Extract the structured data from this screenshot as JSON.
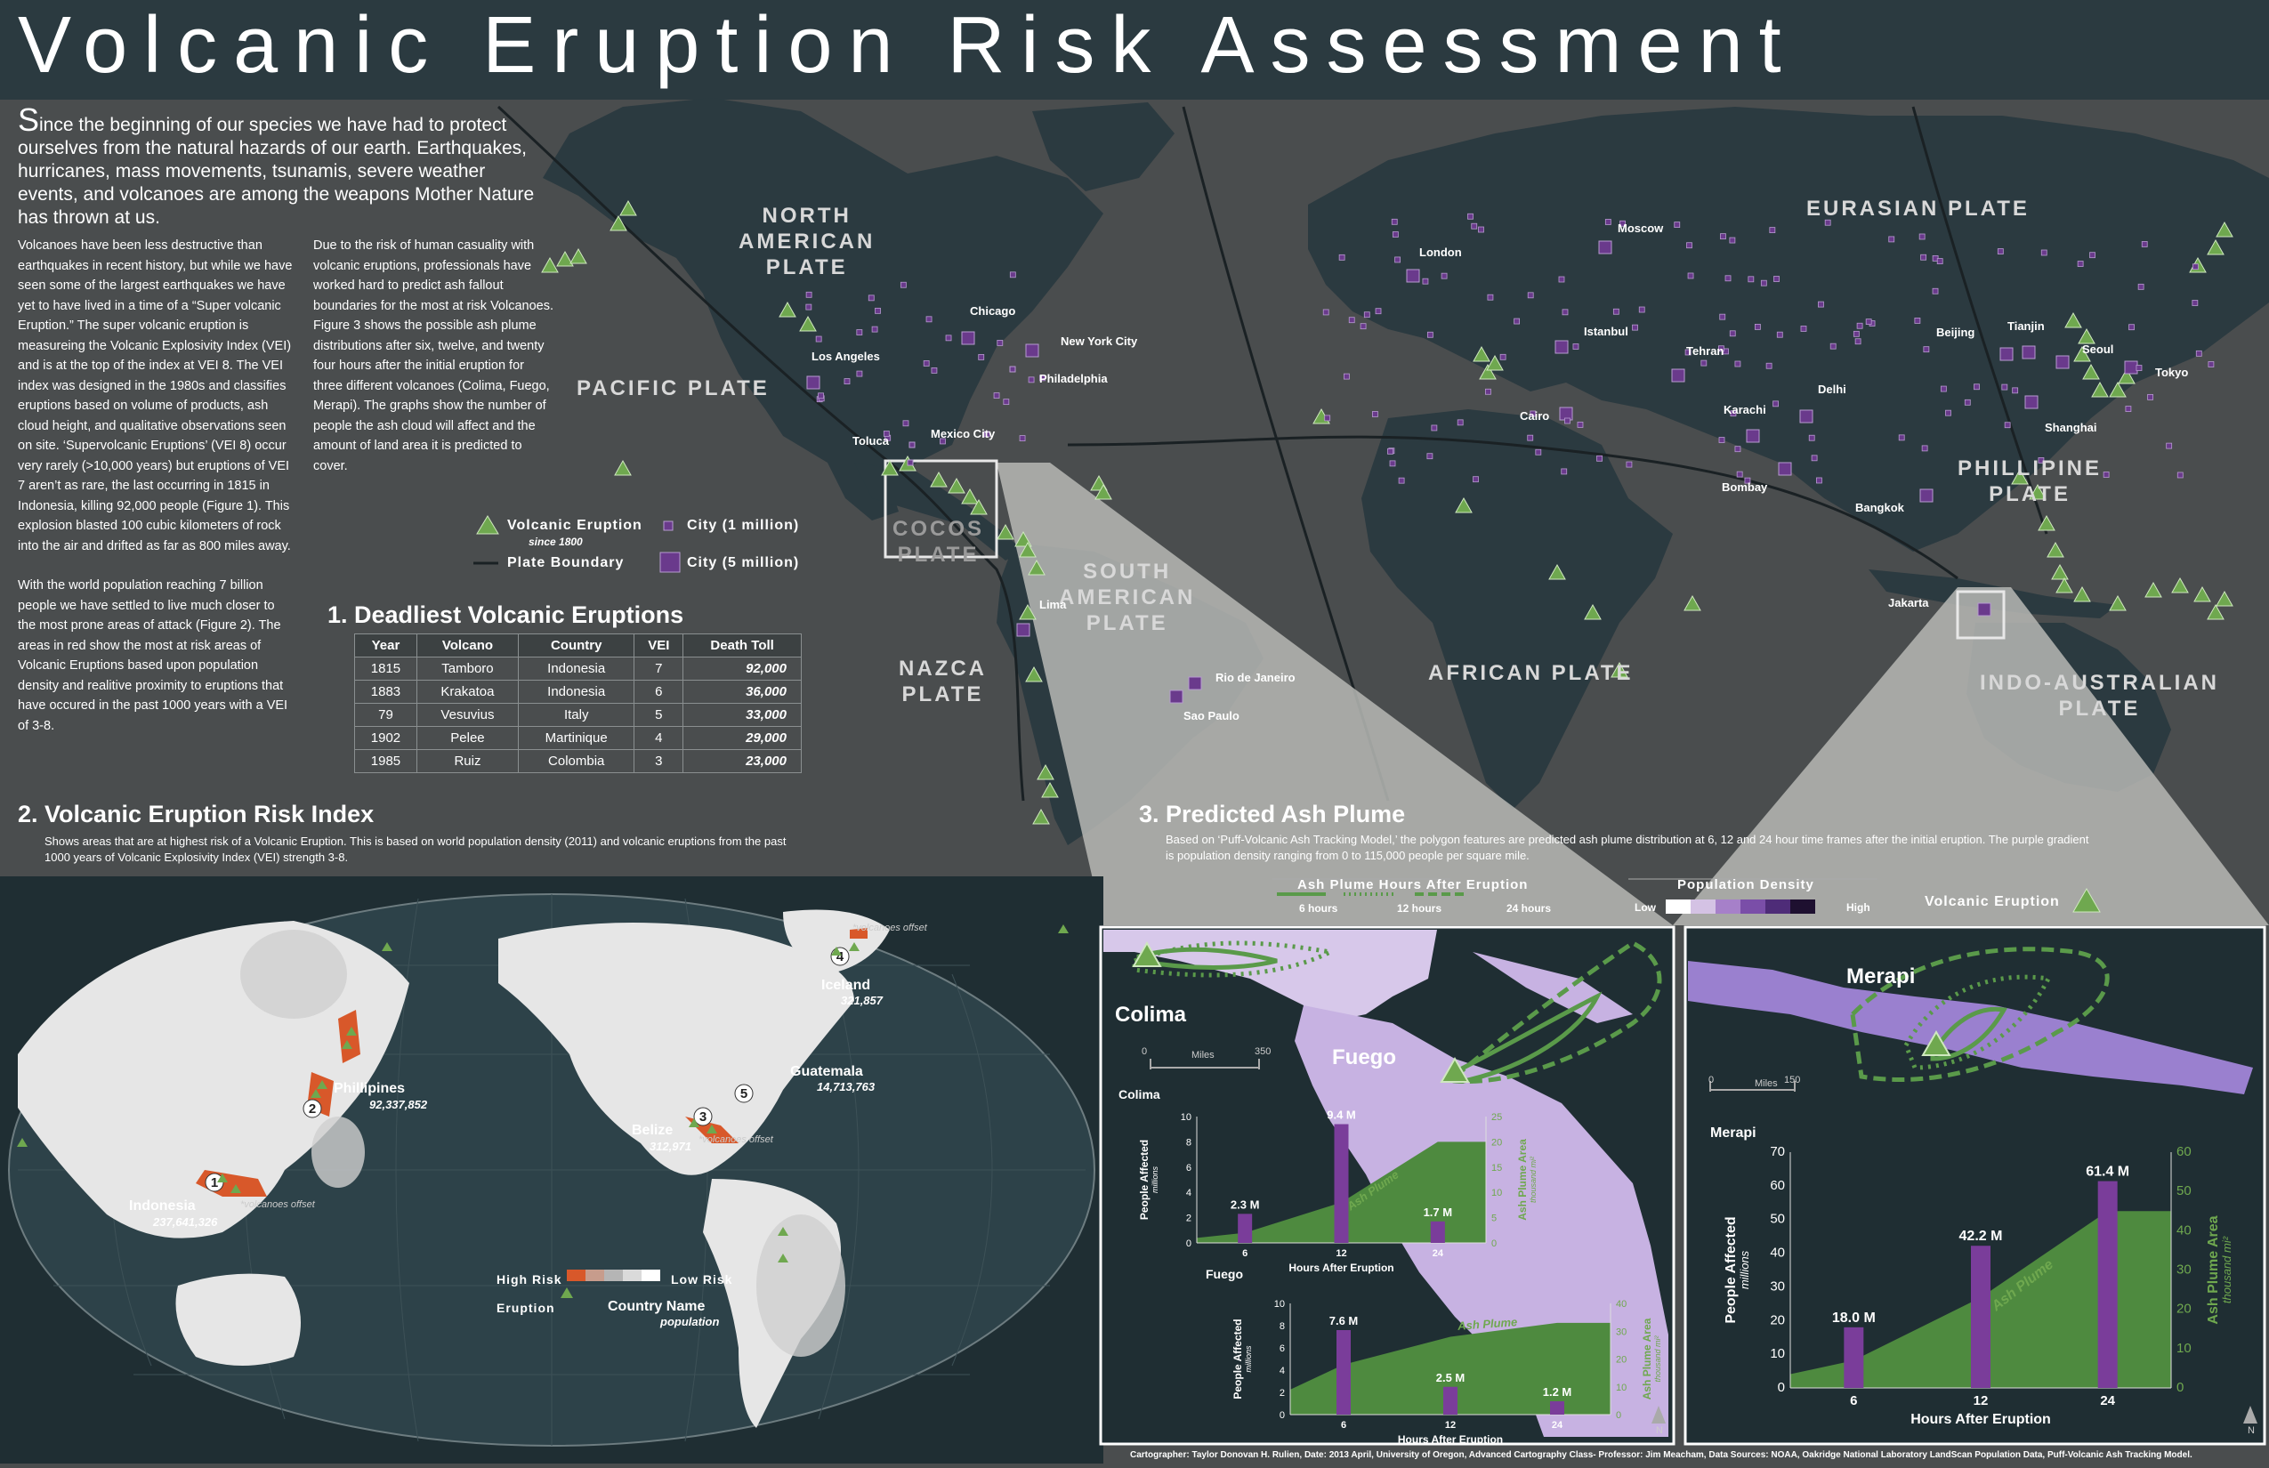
{
  "title": "Volcanic Eruption Risk Assessment",
  "intro": {
    "drop_letter": "S",
    "text": "ince the beginning of our species we have had to protect ourselves from the natural hazards of our earth. Earthquakes, hurricanes, mass movements, tsunamis, severe weather events, and volcanoes are among the weapons Mother Nature has thrown at us."
  },
  "column1": {
    "p1": "Volcanoes have been less destructive than earthquakes in recent history, but while we have seen some of the largest earthquakes we have yet to have lived in a time of a “Super volcanic Eruption.” The super volcanic eruption is measureing the Volcanic Explosivity Index (VEI) and is at the top of the index at VEI 8. The VEI index was designed in the 1980s and classifies eruptions based on volume of products, ash cloud height, and qualitative observations seen on site. ‘Supervolcanic Eruptions’ (VEI 8) occur very rarely (>10,000 years) but eruptions of VEI 7 aren’t as rare, the last occurring in 1815 in Indonesia, killing 92,000 people (Figure 1). This explosion blasted 100 cubic kilometers of rock into the air and drifted as far as 800 miles away.",
    "p2": "With the world population reaching 7 billion people we have settled to live much closer to the most prone areas of attack (Figure 2). The areas in red show the most at risk areas of Volcanic Eruptions based upon population density and realitive proximity to eruptions that have occured in the past 1000 years with a VEI of 3-8."
  },
  "column2": {
    "p1": "Due to the risk of human casuality with volcanic eruptions, professionals have worked hard to predict ash fallout boundaries for the most at risk Volcanoes. Figure 3 shows the possible ash plume distributions after six, twelve, and twenty four hours after the initial eruption for three different volcanoes (Colima, Fuego, Merapi). The graphs show the number of people the ash cloud will affect and the amount of land area it is predicted to cover."
  },
  "main_legend": {
    "volcanic_eruption": "Volcanic Eruption",
    "since": "since 1800",
    "plate_boundary": "Plate Boundary",
    "city_1m": "City (1 million)",
    "city_5m": "City (5 million)"
  },
  "colors": {
    "land": "#2b3a40",
    "ocean": "#4a4d4e",
    "volcano": "#6fa84f",
    "city": "#6a3a8c",
    "risk_high": "#d8582a",
    "plume_green": "#5a9a4a",
    "bar_purple": "#7a3d9a"
  },
  "plates": [
    {
      "line1": "NORTH",
      "line2": "AMERICAN",
      "line3": "PLATE"
    },
    {
      "line1": "PACIFIC PLATE"
    },
    {
      "line1": "COCOS",
      "line2": "PLATE"
    },
    {
      "line1": "NAZCA",
      "line2": "PLATE"
    },
    {
      "line1": "SOUTH",
      "line2": "AMERICAN",
      "line3": "PLATE"
    },
    {
      "line1": "AFRICAN PLATE"
    },
    {
      "line1": "EURASIAN PLATE"
    },
    {
      "line1": "PHILLIPINE",
      "line2": "PLATE"
    },
    {
      "line1": "INDO-AUSTRALIAN",
      "line2": "PLATE"
    }
  ],
  "cities": [
    "Chicago",
    "New York City",
    "Philadelphia",
    "Los Angeles",
    "Mexico City",
    "Toluca",
    "Lima",
    "Rio de Janeiro",
    "Sao Paulo",
    "London",
    "Moscow",
    "Istanbul",
    "Tehran",
    "Cairo",
    "Karachi",
    "Delhi",
    "Bombay",
    "Bangkok",
    "Jakarta",
    "Beijing",
    "Tianjin",
    "Seoul",
    "Tokyo",
    "Shanghai"
  ],
  "table": {
    "section_title": "1. Deadliest Volcanic Eruptions",
    "headers": [
      "Year",
      "Volcano",
      "Country",
      "VEI",
      "Death Toll"
    ],
    "rows": [
      [
        "1815",
        "Tamboro",
        "Indonesia",
        "7",
        "92,000"
      ],
      [
        "1883",
        "Krakatoa",
        "Indonesia",
        "6",
        "36,000"
      ],
      [
        "79",
        "Vesuvius",
        "Italy",
        "5",
        "33,000"
      ],
      [
        "1902",
        "Pelee",
        "Martinique",
        "4",
        "29,000"
      ],
      [
        "1985",
        "Ruiz",
        "Colombia",
        "3",
        "23,000"
      ]
    ]
  },
  "risk": {
    "section_title": "2. Volcanic Eruption Risk Index",
    "desc": "Shows areas that are at highest risk of a Volcanic Eruption. This is based on world population density (2011) and volcanic eruptions from the past  1000 years of Volcanic Explosivity Index (VEI) strength 3-8.",
    "places": [
      {
        "rank": "1",
        "name": "Indonesia",
        "pop": "237,641,326",
        "note": "*volcanoes offset"
      },
      {
        "rank": "2",
        "name": "Phillipines",
        "pop": "92,337,852"
      },
      {
        "rank": "3",
        "name": "Belize",
        "pop": "312,971",
        "note": "*volcanoes offset"
      },
      {
        "rank": "4",
        "name": "Iceland",
        "pop": "321,857",
        "note": "*volcanoes offset"
      },
      {
        "rank": "5",
        "name": "Guatemala",
        "pop": "14,713,763"
      }
    ],
    "legend": {
      "high": "High Risk",
      "low": "Low Risk",
      "eruption": "Eruption",
      "country_name": "Country Name",
      "population": "population"
    }
  },
  "ash": {
    "section_title": "3. Predicted Ash Plume",
    "desc": "Based on ‘Puff-Volcanic Ash Tracking Model,’ the polygon features are predicted ash plume distribution at 6, 12 and 24 hour time frames after the initial eruption.  The purple gradient is population density ranging from 0 to 115,000 people per square mile.",
    "legend": {
      "plume_title": "Ash Plume Hours After Eruption",
      "h6": "6 hours",
      "h12": "12 hours",
      "h24": "24 hours",
      "density_title": "Population Density",
      "low": "Low",
      "high": "High",
      "volcanic_eruption": "Volcanic Eruption"
    },
    "map_labels": {
      "colima": "Colima",
      "fuego": "Fuego",
      "merapi": "Merapi",
      "miles": "Miles",
      "scale_a_0": "0",
      "scale_a_max": "350",
      "scale_b_0": "0",
      "scale_b_max": "150",
      "north": "N"
    }
  },
  "chart_data": [
    {
      "type": "bar",
      "title": "Colima",
      "categories": [
        "6",
        "12",
        "24"
      ],
      "series": [
        {
          "name": "People Affected",
          "values": [
            2.3,
            9.4,
            1.7
          ]
        }
      ],
      "data_labels": [
        "2.3 M",
        "9.4 M",
        "1.7 M"
      ],
      "area": {
        "name": "Ash Plume",
        "values": [
          2,
          8,
          20
        ]
      },
      "xlabel": "Hours After Eruption",
      "ylabel": "People Affected",
      "ylabel_unit": "millions",
      "y2label": "Ash Plume Area",
      "y2label_unit": "thousand mi²",
      "ylim": [
        0,
        10
      ],
      "y2lim": [
        0,
        25
      ],
      "yticks": [
        "0",
        "2",
        "4",
        "6",
        "8",
        "10"
      ],
      "y2ticks": [
        "0",
        "5",
        "10",
        "15",
        "20",
        "25"
      ]
    },
    {
      "type": "bar",
      "title": "Fuego",
      "categories": [
        "6",
        "12",
        "24"
      ],
      "series": [
        {
          "name": "People Affected",
          "values": [
            7.6,
            2.5,
            1.2
          ]
        }
      ],
      "data_labels": [
        "7.6 M",
        "2.5 M",
        "1.2 M"
      ],
      "area": {
        "name": "Ash Plume",
        "values": [
          18,
          28,
          33
        ]
      },
      "xlabel": "Hours After Eruption",
      "ylabel": "People Affected",
      "ylabel_unit": "millions",
      "y2label": "Ash Plume Area",
      "y2label_unit": "thousand mi²",
      "ylim": [
        0,
        10
      ],
      "y2lim": [
        0,
        40
      ],
      "yticks": [
        "0",
        "2",
        "4",
        "6",
        "8",
        "10"
      ],
      "y2ticks": [
        "0",
        "10",
        "20",
        "30",
        "40"
      ]
    },
    {
      "type": "bar",
      "title": "Merapi",
      "categories": [
        "6",
        "12",
        "24"
      ],
      "series": [
        {
          "name": "People Affected",
          "values": [
            18.0,
            42.2,
            61.4
          ]
        }
      ],
      "data_labels": [
        "18.0 M",
        "42.2 M",
        "61.4 M"
      ],
      "area": {
        "name": "Ash Plume",
        "values": [
          7,
          23,
          45
        ]
      },
      "xlabel": "Hours After Eruption",
      "ylabel": "People Affected",
      "ylabel_unit": "millions",
      "y2label": "Ash Plume Area",
      "y2label_unit": "thousand mi²",
      "ylim": [
        0,
        70
      ],
      "y2lim": [
        0,
        60
      ],
      "yticks": [
        "0",
        "10",
        "20",
        "30",
        "40",
        "50",
        "60",
        "70"
      ],
      "y2ticks": [
        "0",
        "10",
        "20",
        "30",
        "40",
        "50",
        "60"
      ]
    }
  ],
  "credit": "Cartographer: Taylor Donovan H. Rulien, Date: 2013 April, University of Oregon, Advanced Cartography Class- Professor: Jim Meacham, Data Sources: NOAA, Oakridge National Laboratory LandScan Population Data, Puff-Volcanic Ash Tracking Model."
}
